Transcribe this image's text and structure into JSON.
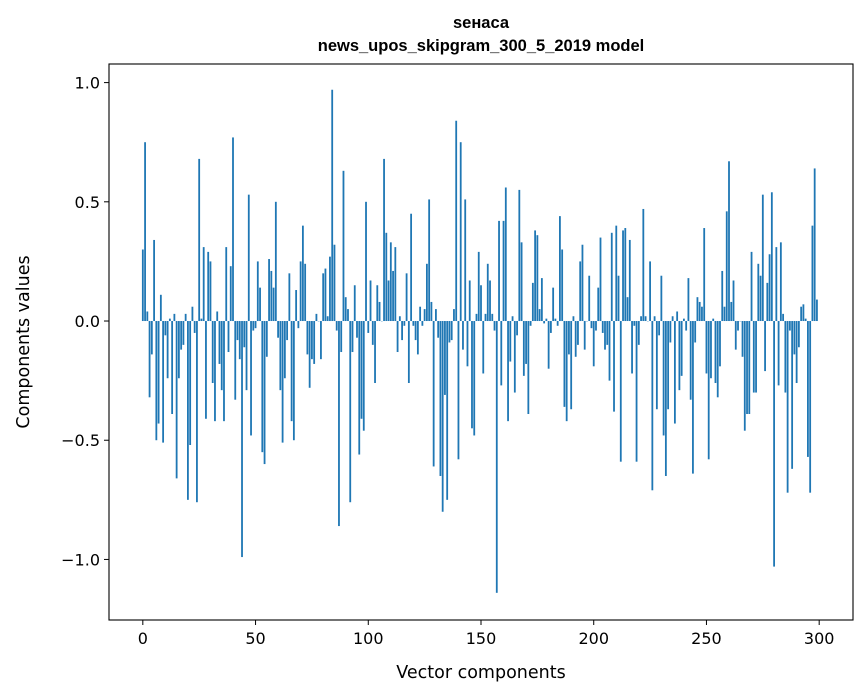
{
  "chart_data": {
    "type": "bar",
    "title_line1": "sенаса",
    "title_line2": "news_upos_skipgram_300_5_2019 model",
    "xlabel": "Vector components",
    "ylabel": "Components values",
    "xlim": [
      -15,
      315
    ],
    "ylim": [
      -1.254,
      1.078
    ],
    "xticks": [
      "0",
      "50",
      "100",
      "150",
      "200",
      "250",
      "300"
    ],
    "yticks": [
      "−1.0",
      "−0.5",
      "0.0",
      "0.5",
      "1.0"
    ],
    "grid": false,
    "bar_color": "#1f77b4",
    "values": [
      0.3,
      0.75,
      0.04,
      -0.32,
      -0.14,
      0.34,
      -0.5,
      -0.43,
      0.11,
      -0.51,
      -0.06,
      -0.24,
      0.01,
      -0.39,
      0.03,
      -0.66,
      -0.24,
      -0.12,
      -0.1,
      0.03,
      -0.75,
      -0.52,
      0.06,
      -0.05,
      -0.76,
      0.68,
      0.01,
      0.31,
      -0.41,
      0.29,
      0.25,
      -0.26,
      -0.42,
      0.04,
      -0.18,
      -0.29,
      -0.42,
      0.31,
      -0.13,
      0.23,
      0.77,
      -0.33,
      -0.08,
      -0.16,
      -0.99,
      -0.11,
      -0.29,
      0.53,
      -0.48,
      -0.04,
      -0.03,
      0.25,
      0.14,
      -0.55,
      -0.6,
      -0.15,
      0.26,
      0.21,
      0.14,
      0.5,
      -0.07,
      -0.29,
      -0.51,
      -0.24,
      -0.08,
      0.2,
      -0.42,
      -0.5,
      0.13,
      -0.03,
      0.25,
      0.4,
      0.24,
      -0.14,
      -0.28,
      -0.16,
      -0.18,
      0.03,
      0.0,
      -0.16,
      0.2,
      0.22,
      0.02,
      0.27,
      0.97,
      0.32,
      -0.04,
      -0.86,
      -0.13,
      0.63,
      0.1,
      0.05,
      -0.76,
      -0.13,
      0.15,
      -0.07,
      -0.56,
      -0.41,
      -0.46,
      0.5,
      -0.05,
      0.17,
      -0.1,
      -0.26,
      0.15,
      0.08,
      0.0,
      0.68,
      0.37,
      0.17,
      0.33,
      0.21,
      0.31,
      -0.13,
      0.02,
      -0.08,
      -0.02,
      0.2,
      -0.26,
      0.45,
      -0.02,
      -0.08,
      -0.14,
      0.06,
      -0.02,
      0.05,
      0.24,
      0.51,
      0.08,
      -0.61,
      0.05,
      -0.07,
      -0.65,
      -0.8,
      -0.31,
      -0.75,
      -0.09,
      -0.08,
      0.05,
      0.84,
      -0.58,
      0.75,
      -0.12,
      0.51,
      -0.19,
      0.17,
      -0.45,
      -0.48,
      0.03,
      0.29,
      0.15,
      -0.22,
      0.03,
      0.24,
      0.17,
      0.03,
      -0.04,
      -1.14,
      0.42,
      -0.27,
      0.42,
      0.56,
      -0.42,
      -0.17,
      0.02,
      -0.3,
      -0.06,
      0.55,
      0.33,
      -0.23,
      -0.18,
      -0.39,
      -0.02,
      0.16,
      0.38,
      0.36,
      0.05,
      0.18,
      -0.01,
      0.01,
      -0.2,
      -0.05,
      0.14,
      0.01,
      -0.02,
      0.44,
      0.3,
      -0.36,
      -0.42,
      -0.14,
      -0.37,
      0.02,
      -0.15,
      -0.1,
      0.25,
      0.32,
      -0.12,
      0.0,
      0.19,
      -0.03,
      -0.19,
      -0.04,
      0.14,
      0.35,
      -0.05,
      -0.12,
      -0.1,
      -0.25,
      0.37,
      -0.38,
      0.4,
      0.19,
      -0.59,
      0.38,
      0.39,
      0.1,
      0.34,
      -0.22,
      -0.02,
      -0.59,
      -0.1,
      0.02,
      0.47,
      0.02,
      0.0,
      0.25,
      -0.71,
      0.02,
      -0.37,
      -0.06,
      0.19,
      -0.48,
      -0.65,
      -0.37,
      -0.09,
      0.02,
      -0.43,
      0.04,
      -0.29,
      -0.23,
      0.01,
      -0.04,
      0.18,
      -0.33,
      -0.64,
      -0.09,
      0.1,
      0.08,
      0.06,
      0.39,
      -0.22,
      -0.58,
      -0.24,
      0.01,
      -0.26,
      -0.32,
      -0.19,
      0.21,
      0.06,
      0.46,
      0.67,
      0.08,
      0.17,
      -0.12,
      -0.04,
      0.0,
      -0.15,
      -0.46,
      -0.39,
      -0.39,
      0.29,
      -0.3,
      -0.3,
      0.24,
      0.19,
      0.53,
      -0.21,
      0.16,
      0.28,
      0.54,
      -1.03,
      0.31,
      -0.27,
      0.33,
      0.03,
      -0.3,
      -0.72,
      -0.04,
      -0.62,
      -0.14,
      -0.26,
      -0.11,
      0.06,
      0.07,
      0.01,
      -0.57,
      -0.72,
      0.4,
      0.64,
      0.09
    ]
  }
}
